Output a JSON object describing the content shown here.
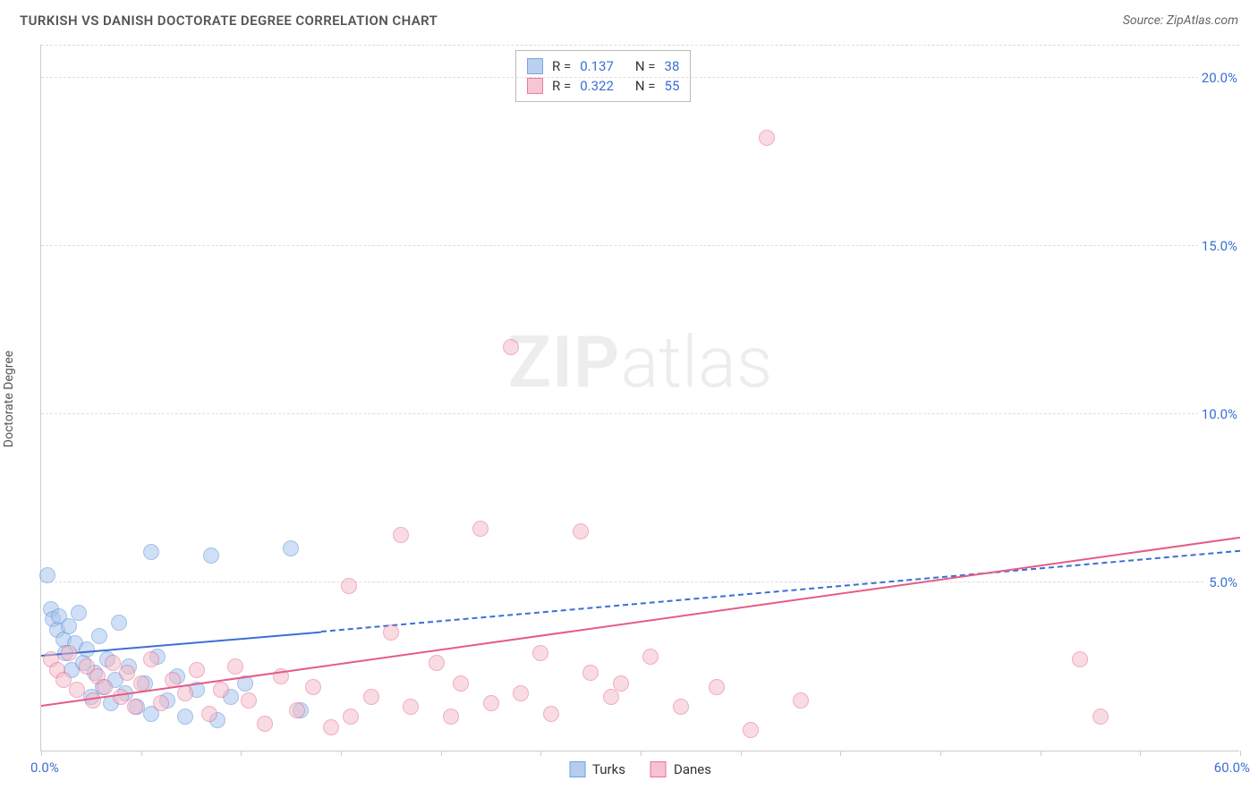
{
  "title": "TURKISH VS DANISH DOCTORATE DEGREE CORRELATION CHART",
  "source": "Source: ZipAtlas.com",
  "ylabel": "Doctorate Degree",
  "watermark_bold": "ZIP",
  "watermark_light": "atlas",
  "chart": {
    "type": "scatter",
    "xlim": [
      0,
      60
    ],
    "ylim": [
      0,
      21
    ],
    "x_min_label": "0.0%",
    "x_max_label": "60.0%",
    "yticks": [
      {
        "v": 5,
        "label": "5.0%"
      },
      {
        "v": 10,
        "label": "10.0%"
      },
      {
        "v": 15,
        "label": "15.0%"
      },
      {
        "v": 20,
        "label": "20.0%"
      }
    ],
    "xtick_positions": [
      0,
      5,
      10,
      15,
      20,
      25,
      30,
      35,
      40,
      45,
      50,
      55,
      60
    ],
    "grid_color": "#dddddd",
    "axis_color": "#cccccc",
    "background_color": "#ffffff",
    "point_radius": 9,
    "series": [
      {
        "name": "Turks",
        "fill": "#a8c5ed",
        "stroke": "#5b8fd6",
        "fill_opacity": 0.55,
        "R": "0.137",
        "N": "38",
        "trend": {
          "x1": 0,
          "y1": 2.8,
          "x2_solid": 14,
          "y2_solid": 3.5,
          "x2": 60,
          "y2": 5.9,
          "color": "#3b6fd4"
        },
        "points": [
          {
            "x": 0.3,
            "y": 5.2
          },
          {
            "x": 0.5,
            "y": 4.2
          },
          {
            "x": 0.6,
            "y": 3.9
          },
          {
            "x": 0.8,
            "y": 3.6
          },
          {
            "x": 0.9,
            "y": 4.0
          },
          {
            "x": 1.1,
            "y": 3.3
          },
          {
            "x": 1.2,
            "y": 2.9
          },
          {
            "x": 1.4,
            "y": 3.7
          },
          {
            "x": 1.5,
            "y": 2.4
          },
          {
            "x": 1.7,
            "y": 3.2
          },
          {
            "x": 1.9,
            "y": 4.1
          },
          {
            "x": 2.1,
            "y": 2.6
          },
          {
            "x": 2.3,
            "y": 3.0
          },
          {
            "x": 2.5,
            "y": 1.6
          },
          {
            "x": 2.7,
            "y": 2.3
          },
          {
            "x": 2.9,
            "y": 3.4
          },
          {
            "x": 3.1,
            "y": 1.9
          },
          {
            "x": 3.3,
            "y": 2.7
          },
          {
            "x": 3.5,
            "y": 1.4
          },
          {
            "x": 3.7,
            "y": 2.1
          },
          {
            "x": 3.9,
            "y": 3.8
          },
          {
            "x": 4.2,
            "y": 1.7
          },
          {
            "x": 4.4,
            "y": 2.5
          },
          {
            "x": 4.8,
            "y": 1.3
          },
          {
            "x": 5.2,
            "y": 2.0
          },
          {
            "x": 5.5,
            "y": 1.1
          },
          {
            "x": 5.5,
            "y": 5.9
          },
          {
            "x": 5.8,
            "y": 2.8
          },
          {
            "x": 6.3,
            "y": 1.5
          },
          {
            "x": 6.8,
            "y": 2.2
          },
          {
            "x": 7.2,
            "y": 1.0
          },
          {
            "x": 7.8,
            "y": 1.8
          },
          {
            "x": 8.5,
            "y": 5.8
          },
          {
            "x": 8.8,
            "y": 0.9
          },
          {
            "x": 9.5,
            "y": 1.6
          },
          {
            "x": 10.2,
            "y": 2.0
          },
          {
            "x": 12.5,
            "y": 6.0
          },
          {
            "x": 13.0,
            "y": 1.2
          }
        ]
      },
      {
        "name": "Danes",
        "fill": "#f4b8c7",
        "stroke": "#e55b87",
        "fill_opacity": 0.5,
        "R": "0.322",
        "N": "55",
        "trend": {
          "x1": 0,
          "y1": 1.3,
          "x2_solid": 60,
          "y2_solid": 6.3,
          "x2": 60,
          "y2": 6.3,
          "color": "#e55b87"
        },
        "points": [
          {
            "x": 0.5,
            "y": 2.7
          },
          {
            "x": 0.8,
            "y": 2.4
          },
          {
            "x": 1.1,
            "y": 2.1
          },
          {
            "x": 1.4,
            "y": 2.9
          },
          {
            "x": 1.8,
            "y": 1.8
          },
          {
            "x": 2.3,
            "y": 2.5
          },
          {
            "x": 2.6,
            "y": 1.5
          },
          {
            "x": 2.8,
            "y": 2.2
          },
          {
            "x": 3.2,
            "y": 1.9
          },
          {
            "x": 3.6,
            "y": 2.6
          },
          {
            "x": 4.0,
            "y": 1.6
          },
          {
            "x": 4.3,
            "y": 2.3
          },
          {
            "x": 4.7,
            "y": 1.3
          },
          {
            "x": 5.0,
            "y": 2.0
          },
          {
            "x": 5.5,
            "y": 2.7
          },
          {
            "x": 6.0,
            "y": 1.4
          },
          {
            "x": 6.6,
            "y": 2.1
          },
          {
            "x": 7.2,
            "y": 1.7
          },
          {
            "x": 7.8,
            "y": 2.4
          },
          {
            "x": 8.4,
            "y": 1.1
          },
          {
            "x": 9.0,
            "y": 1.8
          },
          {
            "x": 9.7,
            "y": 2.5
          },
          {
            "x": 10.4,
            "y": 1.5
          },
          {
            "x": 11.2,
            "y": 0.8
          },
          {
            "x": 12.0,
            "y": 2.2
          },
          {
            "x": 12.8,
            "y": 1.2
          },
          {
            "x": 13.6,
            "y": 1.9
          },
          {
            "x": 14.5,
            "y": 0.7
          },
          {
            "x": 15.4,
            "y": 4.9
          },
          {
            "x": 15.5,
            "y": 1.0
          },
          {
            "x": 16.5,
            "y": 1.6
          },
          {
            "x": 17.5,
            "y": 3.5
          },
          {
            "x": 18.0,
            "y": 6.4
          },
          {
            "x": 18.5,
            "y": 1.3
          },
          {
            "x": 19.8,
            "y": 2.6
          },
          {
            "x": 20.5,
            "y": 1.0
          },
          {
            "x": 21.0,
            "y": 2.0
          },
          {
            "x": 22.0,
            "y": 6.6
          },
          {
            "x": 22.5,
            "y": 1.4
          },
          {
            "x": 23.5,
            "y": 12.0
          },
          {
            "x": 24.0,
            "y": 1.7
          },
          {
            "x": 25.0,
            "y": 2.9
          },
          {
            "x": 25.5,
            "y": 1.1
          },
          {
            "x": 27.0,
            "y": 6.5
          },
          {
            "x": 27.5,
            "y": 2.3
          },
          {
            "x": 28.5,
            "y": 1.6
          },
          {
            "x": 29.0,
            "y": 2.0
          },
          {
            "x": 30.5,
            "y": 2.8
          },
          {
            "x": 32.0,
            "y": 1.3
          },
          {
            "x": 33.8,
            "y": 1.9
          },
          {
            "x": 35.5,
            "y": 0.6
          },
          {
            "x": 36.3,
            "y": 18.2
          },
          {
            "x": 38.0,
            "y": 1.5
          },
          {
            "x": 52.0,
            "y": 2.7
          },
          {
            "x": 53.0,
            "y": 1.0
          }
        ]
      }
    ]
  },
  "stats_labels": {
    "R": "R  =",
    "N": "N  ="
  },
  "value_color": "#3b6fd4"
}
